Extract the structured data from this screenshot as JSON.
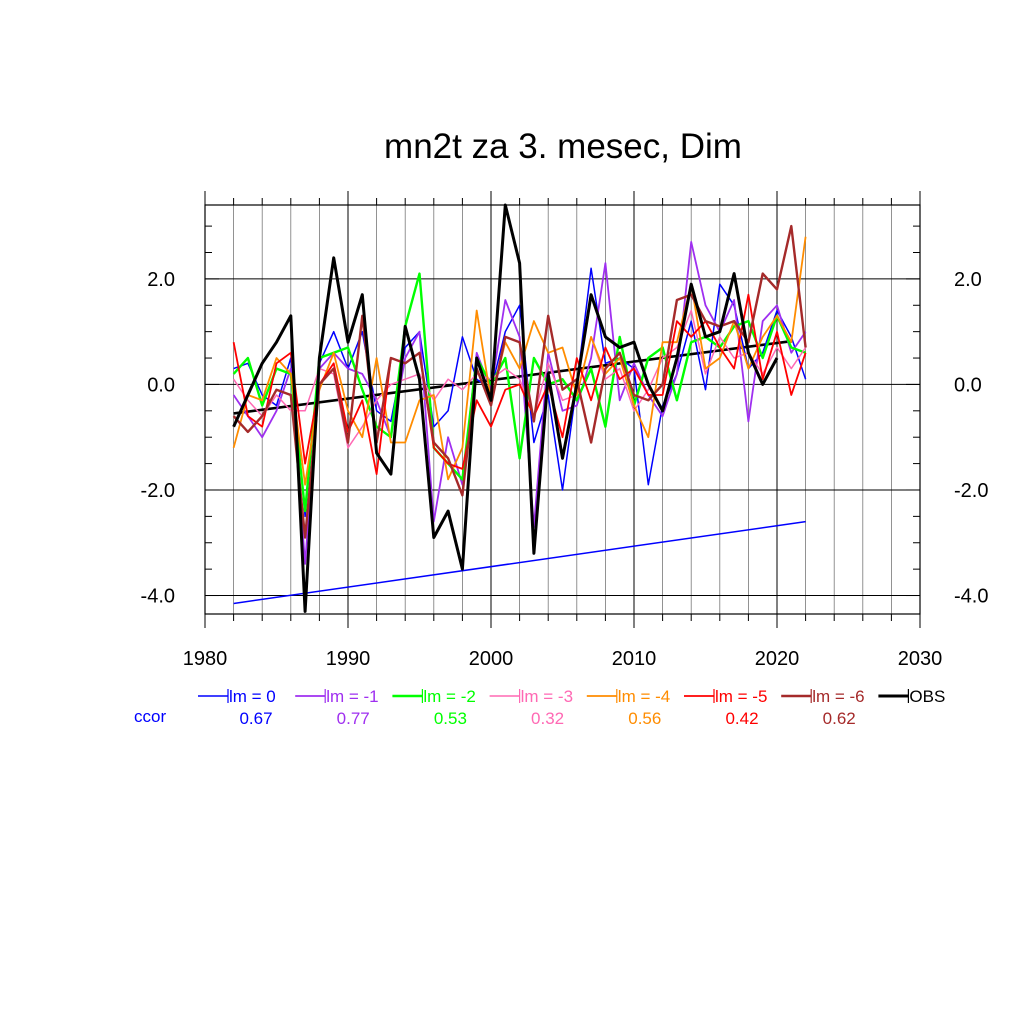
{
  "chart_data": {
    "type": "line",
    "title": "mn2t za 3. mesec, Dim",
    "xlabel": "",
    "ylabel": "",
    "xlim": [
      1980,
      2030
    ],
    "ylim": [
      -4.35,
      3.4
    ],
    "x_ticks": [
      1980,
      1990,
      2000,
      2010,
      2020,
      2030
    ],
    "x_tick_labels": [
      "1980",
      "1990",
      "2000",
      "2010",
      "2020",
      "2030"
    ],
    "y_ticks": [
      2.0,
      0.0,
      -2.0,
      -4.0
    ],
    "y_tick_labels": [
      "2.0",
      "0.0",
      "-2.0",
      "-4.0"
    ],
    "grid": true,
    "legend_position": "below",
    "ccor_label": "ccor",
    "ccor_label_color": "#0000ff",
    "x": [
      1982,
      1983,
      1984,
      1985,
      1986,
      1987,
      1988,
      1989,
      1990,
      1991,
      1992,
      1993,
      1994,
      1995,
      1996,
      1997,
      1998,
      1999,
      2000,
      2001,
      2002,
      2003,
      2004,
      2005,
      2006,
      2007,
      2008,
      2009,
      2010,
      2011,
      2012,
      2013,
      2014,
      2015,
      2016,
      2017,
      2018,
      2019,
      2020,
      2021,
      2022
    ],
    "series": [
      {
        "name": "lm = 0",
        "ccor": "0.67",
        "color": "#0000ff",
        "width": 1.5,
        "values": [
          0.3,
          0.4,
          -0.2,
          -0.4,
          0.5,
          -2.5,
          0.4,
          1.0,
          0.3,
          1.0,
          -0.5,
          -0.7,
          0.7,
          1.0,
          -0.8,
          -0.5,
          0.9,
          0.1,
          -0.1,
          1.0,
          1.5,
          -1.1,
          -0.2,
          -2.0,
          0.0,
          2.2,
          0.4,
          0.5,
          0.3,
          -1.9,
          -0.4,
          0.2,
          1.2,
          -0.1,
          1.9,
          1.5,
          0.3,
          0.6,
          1.4,
          0.9,
          0.1
        ]
      },
      {
        "name": "lm = -1",
        "ccor": "0.77",
        "color": "#9f2ff0",
        "width": 1.8,
        "values": [
          -0.2,
          -0.6,
          -1.0,
          -0.5,
          0.3,
          -3.4,
          0.3,
          0.6,
          0.3,
          0.2,
          -0.3,
          -1.0,
          0.5,
          1.0,
          -2.6,
          -1.0,
          -1.9,
          0.6,
          -0.1,
          1.6,
          0.9,
          -2.7,
          0.6,
          -0.5,
          -0.4,
          0.5,
          2.3,
          -0.3,
          0.4,
          -0.2,
          -0.6,
          0.2,
          2.7,
          1.5,
          1.0,
          1.6,
          -0.7,
          1.2,
          1.5,
          0.6,
          1.0
        ]
      },
      {
        "name": "lm = -2",
        "ccor": "0.53",
        "color": "#00ff00",
        "width": 2.4,
        "values": [
          0.2,
          0.5,
          -0.4,
          0.3,
          0.2,
          -2.4,
          0.5,
          0.6,
          0.7,
          -0.1,
          -0.8,
          -1.0,
          1.1,
          2.1,
          -1.2,
          -1.5,
          -1.8,
          0.5,
          0.0,
          0.5,
          -1.4,
          0.5,
          0.0,
          0.1,
          -0.3,
          0.3,
          -0.8,
          0.9,
          -0.4,
          0.5,
          0.7,
          -0.3,
          0.8,
          0.9,
          0.7,
          1.1,
          1.2,
          0.5,
          1.3,
          0.7,
          0.6
        ]
      },
      {
        "name": "lm = -3",
        "ccor": "0.32",
        "color": "#ff69b4",
        "width": 1.5,
        "values": [
          0.1,
          -0.3,
          -0.6,
          -0.2,
          -0.5,
          -0.5,
          0.3,
          0.2,
          -1.2,
          -0.8,
          -0.3,
          0.0,
          0.1,
          0.2,
          -0.3,
          0.1,
          -0.1,
          0.2,
          0.1,
          0.3,
          0.1,
          -0.6,
          0.4,
          -0.3,
          -0.2,
          0.9,
          0.1,
          0.3,
          -0.5,
          -0.1,
          0.5,
          0.7,
          1.4,
          0.2,
          0.9,
          0.5,
          0.6,
          0.2,
          0.7,
          0.3,
          0.7
        ]
      },
      {
        "name": "lm = -4",
        "ccor": "0.56",
        "color": "#ff8c00",
        "width": 1.8,
        "values": [
          -1.2,
          -0.2,
          -0.3,
          0.5,
          0.2,
          -1.9,
          -0.1,
          0.6,
          -0.5,
          -1.0,
          0.5,
          -1.1,
          -1.1,
          -0.3,
          -0.2,
          -1.8,
          -1.2,
          1.4,
          -0.3,
          0.8,
          0.3,
          1.2,
          0.6,
          0.7,
          -0.2,
          0.9,
          0.2,
          0.5,
          -0.4,
          -1.0,
          0.8,
          0.8,
          1.9,
          0.3,
          0.5,
          1.2,
          0.3,
          0.9,
          1.3,
          0.8,
          2.8
        ]
      },
      {
        "name": "lm = -5",
        "ccor": "0.42",
        "color": "#ff0000",
        "width": 1.8,
        "values": [
          0.8,
          -0.6,
          -0.8,
          0.4,
          0.6,
          -1.5,
          0.0,
          0.4,
          -0.9,
          -0.3,
          -1.7,
          0.5,
          0.4,
          0.6,
          -1.2,
          -1.5,
          -1.6,
          -0.3,
          -0.8,
          -0.1,
          0.0,
          -0.6,
          0.0,
          -1.0,
          0.5,
          -0.3,
          0.7,
          0.1,
          0.3,
          -0.2,
          -0.2,
          1.2,
          0.9,
          1.2,
          0.7,
          0.3,
          1.7,
          0.1,
          1.0,
          -0.2,
          0.6
        ]
      },
      {
        "name": "lm = -6",
        "ccor": "0.62",
        "color": "#a52a2a",
        "width": 2.4,
        "values": [
          -0.6,
          -0.9,
          -0.6,
          -0.1,
          -0.2,
          -2.9,
          0.0,
          0.3,
          -1.1,
          1.3,
          -1.1,
          0.5,
          0.4,
          0.6,
          -1.1,
          -1.4,
          -2.1,
          0.3,
          -0.4,
          0.9,
          0.8,
          -0.7,
          1.3,
          -0.1,
          0.1,
          -1.1,
          0.3,
          0.6,
          -0.2,
          -0.3,
          0.0,
          1.6,
          1.7,
          1.2,
          1.1,
          1.2,
          0.8,
          2.1,
          1.8,
          3.0,
          0.7
        ]
      },
      {
        "name": "OBS",
        "ccor": "",
        "color": "#000000",
        "width": 3.0,
        "values": [
          -0.8,
          -0.2,
          0.4,
          0.8,
          1.3,
          -4.3,
          0.5,
          2.4,
          0.8,
          1.7,
          -1.3,
          -1.7,
          1.1,
          0.1,
          -2.9,
          -2.4,
          -3.5,
          0.5,
          -0.3,
          3.4,
          2.3,
          -3.2,
          0.2,
          -1.4,
          0.0,
          1.7,
          0.9,
          0.7,
          0.8,
          0.0,
          -0.5,
          0.5,
          1.9,
          0.9,
          1.0,
          2.1,
          0.6,
          0.0,
          0.5,
          null,
          null
        ]
      }
    ],
    "trend_obs": {
      "x": [
        1982,
        2021
      ],
      "y": [
        -0.55,
        0.82
      ],
      "color": "#000000"
    },
    "trend_blue": {
      "x": [
        1982,
        2022
      ],
      "y": [
        -4.15,
        -2.6
      ],
      "color": "#0000ff"
    }
  }
}
